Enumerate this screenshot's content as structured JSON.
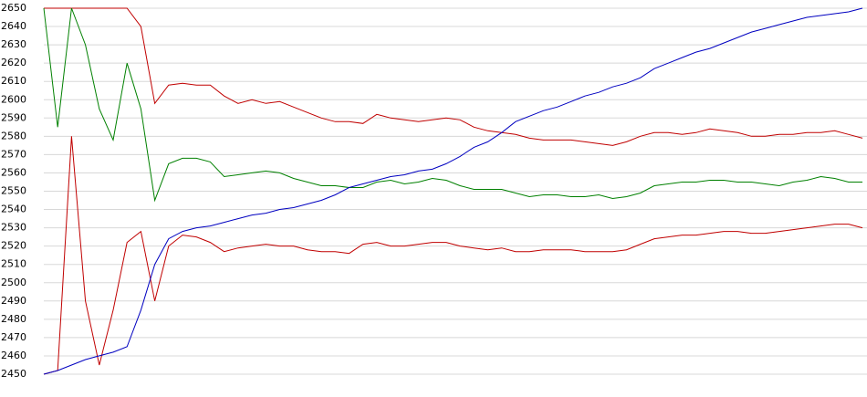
{
  "chart_data": {
    "type": "line",
    "categories": [
      null,
      null,
      null,
      null,
      null,
      null,
      null,
      null,
      null,
      null,
      null,
      null,
      null,
      null,
      null,
      null,
      null,
      null,
      null,
      null,
      null,
      null,
      null,
      null,
      null,
      null,
      null,
      null,
      null,
      null,
      null,
      null,
      null,
      null,
      null,
      null,
      null,
      null,
      null,
      null,
      null,
      null,
      null,
      null,
      null,
      null,
      null,
      null,
      null,
      null,
      null,
      null,
      null,
      null,
      null,
      null,
      null,
      null,
      null,
      null
    ],
    "series": [
      {
        "color": "#c00000",
        "values": [
          2650,
          2650,
          2650,
          2650,
          2650,
          2650,
          2650,
          2640,
          2598,
          2608,
          2609,
          2608,
          2608,
          2602,
          2598,
          2600,
          2598,
          2599,
          2596,
          2593,
          2590,
          2588,
          2588,
          2587,
          2592,
          2590,
          2589,
          2588,
          2589,
          2590,
          2589,
          2585,
          2583,
          2582,
          2581,
          2579,
          2578,
          2578,
          2578,
          2577,
          2576,
          2575,
          2577,
          2580,
          2582,
          2582,
          2581,
          2582,
          2584,
          2583,
          2582,
          2580,
          2580,
          2581,
          2581,
          2582,
          2582,
          2583,
          2581,
          2579
        ]
      },
      {
        "color": "#008000",
        "values": [
          2650,
          2585,
          2650,
          2630,
          2595,
          2578,
          2620,
          2595,
          2545,
          2565,
          2568,
          2568,
          2566,
          2558,
          2559,
          2560,
          2561,
          2560,
          2557,
          2555,
          2553,
          2553,
          2552,
          2552,
          2555,
          2556,
          2554,
          2555,
          2557,
          2556,
          2553,
          2551,
          2551,
          2551,
          2549,
          2547,
          2548,
          2548,
          2547,
          2547,
          2548,
          2546,
          2547,
          2549,
          2553,
          2554,
          2555,
          2555,
          2556,
          2556,
          2555,
          2555,
          2554,
          2553,
          2555,
          2556,
          2558,
          2557,
          2555,
          2555
        ]
      },
      {
        "color": "#c00000",
        "values": [
          2450,
          2452,
          2580,
          2490,
          2455,
          2485,
          2522,
          2528,
          2490,
          2520,
          2526,
          2525,
          2522,
          2517,
          2519,
          2520,
          2521,
          2520,
          2520,
          2518,
          2517,
          2517,
          2516,
          2521,
          2522,
          2520,
          2520,
          2521,
          2522,
          2522,
          2520,
          2519,
          2518,
          2519,
          2517,
          2517,
          2518,
          2518,
          2518,
          2517,
          2517,
          2517,
          2518,
          2521,
          2524,
          2525,
          2526,
          2526,
          2527,
          2528,
          2528,
          2527,
          2527,
          2528,
          2529,
          2530,
          2531,
          2532,
          2532,
          2530
        ]
      },
      {
        "color": "#0000c0",
        "values": [
          2450,
          2452,
          2455,
          2458,
          2460,
          2462,
          2465,
          2485,
          2510,
          2524,
          2528,
          2530,
          2531,
          2533,
          2535,
          2537,
          2538,
          2540,
          2541,
          2543,
          2545,
          2548,
          2552,
          2554,
          2556,
          2558,
          2559,
          2561,
          2562,
          2565,
          2569,
          2574,
          2577,
          2582,
          2588,
          2591,
          2594,
          2596,
          2599,
          2602,
          2604,
          2607,
          2609,
          2612,
          2617,
          2620,
          2623,
          2626,
          2628,
          2631,
          2634,
          2637,
          2639,
          2641,
          2643,
          2645,
          2646,
          2647,
          2648,
          2650
        ]
      }
    ],
    "ylim": [
      2450,
      2650
    ],
    "yticks": [
      2450,
      2460,
      2470,
      2480,
      2490,
      2500,
      2510,
      2520,
      2530,
      2540,
      2550,
      2560,
      2570,
      2580,
      2590,
      2600,
      2610,
      2620,
      2630,
      2640,
      2650
    ],
    "grid": true
  }
}
